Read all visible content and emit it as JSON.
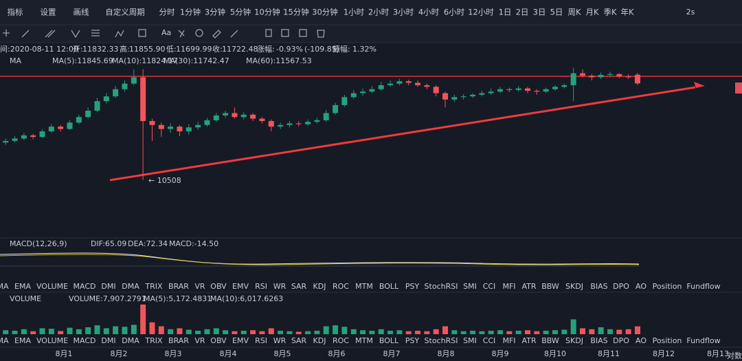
{
  "toolbar": {
    "items": [
      "指标",
      "设置",
      "画线",
      "自定义周期",
      "分时",
      "1分钟",
      "3分钟",
      "5分钟",
      "10分钟",
      "15分钟",
      "30分钟",
      "1小时",
      "2小时",
      "3小时",
      "4小时",
      "6小时",
      "12小时",
      "1日",
      "2日",
      "3日",
      "5日",
      "周K",
      "月K",
      "季K",
      "年K"
    ],
    "active": "4小时",
    "refresh": "2s",
    "font_button": "Aa"
  },
  "info_bar": [
    "间:2020-08-11 12:00",
    "开:",
    "11832.33",
    "高:",
    "11855.90",
    "低:",
    "11699.99",
    "收:",
    "11722.48",
    "涨幅:",
    "-0.93%",
    "(-109.85)",
    "振幅:",
    "1.32%"
  ],
  "ma_legend": {
    "name": "MA",
    "items": [
      "MA(5):11845.69",
      "MA(10):11824.17",
      "MA(30):11742.47",
      "MA(60):11567.53"
    ]
  },
  "low_marker": "← 10508",
  "macd_legend": {
    "name": "MACD(12,26,9)",
    "items": [
      "DIF:65.09",
      "DEA:72.34",
      "MACD:-14.50"
    ]
  },
  "volume_legend": {
    "name": "VOLUME",
    "items": [
      "VOLUME:7,907.2791",
      "MA(5):5,172.4831",
      "MA(10):6,017.6263"
    ]
  },
  "indicator_tabs": [
    "MA",
    "EMA",
    "VOLUME",
    "MACD",
    "DMI",
    "DMA",
    "TRIX",
    "BRAR",
    "VR",
    "OBV",
    "EMV",
    "RSI",
    "WR",
    "SAR",
    "KDJ",
    "ROC",
    "MTM",
    "BOLL",
    "PSY",
    "StochRSI",
    "SMI",
    "CCI",
    "MFI",
    "ATR",
    "BBW",
    "SKDJ",
    "BIAS",
    "DPO",
    "AO",
    "Position",
    "Fundflow"
  ],
  "active_tabs": [
    "MACD",
    "VOLUME"
  ],
  "dates": [
    "8月1",
    "8月2",
    "8月3",
    "8月4",
    "8月5",
    "8月6",
    "8月7",
    "8月8",
    "8月9",
    "8月10",
    "8月11",
    "8月12",
    "8月13"
  ],
  "scale_mode": "对数",
  "price_chart": {
    "type": "candlestick",
    "ylim": [
      9790,
      11950
    ],
    "up_color": "#26a17b",
    "down_color": "#f0555a",
    "candles": [
      [
        10980,
        11030,
        10950,
        11000
      ],
      [
        11000,
        11060,
        10980,
        11030
      ],
      [
        11030,
        11100,
        11010,
        11070
      ],
      [
        11070,
        11090,
        11020,
        11050
      ],
      [
        11050,
        11150,
        11040,
        11120
      ],
      [
        11120,
        11210,
        11100,
        11180
      ],
      [
        11180,
        11200,
        11120,
        11150
      ],
      [
        11150,
        11260,
        11140,
        11230
      ],
      [
        11230,
        11330,
        11210,
        11300
      ],
      [
        11300,
        11420,
        11280,
        11380
      ],
      [
        11380,
        11540,
        11360,
        11500
      ],
      [
        11500,
        11600,
        11470,
        11560
      ],
      [
        11560,
        11690,
        11540,
        11650
      ],
      [
        11650,
        11760,
        11620,
        11720
      ],
      [
        11720,
        11900,
        11700,
        11800
      ],
      [
        11800,
        11900,
        10508,
        11250
      ],
      [
        11250,
        11280,
        11000,
        11200
      ],
      [
        11200,
        11230,
        11050,
        11150
      ],
      [
        11150,
        11220,
        11100,
        11180
      ],
      [
        11180,
        11200,
        11060,
        11120
      ],
      [
        11120,
        11210,
        11080,
        11170
      ],
      [
        11170,
        11240,
        11140,
        11200
      ],
      [
        11200,
        11290,
        11180,
        11260
      ],
      [
        11260,
        11350,
        11240,
        11320
      ],
      [
        11320,
        11380,
        11290,
        11350
      ],
      [
        11350,
        11420,
        11280,
        11300
      ],
      [
        11300,
        11360,
        11270,
        11330
      ],
      [
        11330,
        11350,
        11250,
        11280
      ],
      [
        11280,
        11300,
        11220,
        11250
      ],
      [
        11250,
        11270,
        11120,
        11180
      ],
      [
        11180,
        11230,
        11150,
        11200
      ],
      [
        11200,
        11250,
        11170,
        11220
      ],
      [
        11220,
        11250,
        11180,
        11210
      ],
      [
        11210,
        11270,
        11190,
        11240
      ],
      [
        11240,
        11290,
        11220,
        11260
      ],
      [
        11260,
        11390,
        11240,
        11350
      ],
      [
        11350,
        11480,
        11330,
        11450
      ],
      [
        11450,
        11580,
        11430,
        11550
      ],
      [
        11550,
        11640,
        11530,
        11600
      ],
      [
        11600,
        11660,
        11570,
        11620
      ],
      [
        11620,
        11690,
        11600,
        11650
      ],
      [
        11650,
        11740,
        11630,
        11700
      ],
      [
        11700,
        11760,
        11680,
        11720
      ],
      [
        11720,
        11780,
        11700,
        11750
      ],
      [
        11750,
        11770,
        11700,
        11730
      ],
      [
        11730,
        11760,
        11680,
        11700
      ],
      [
        11700,
        11720,
        11650,
        11680
      ],
      [
        11680,
        11700,
        11560,
        11600
      ],
      [
        11600,
        11620,
        11420,
        11520
      ],
      [
        11520,
        11580,
        11490,
        11550
      ],
      [
        11550,
        11590,
        11520,
        11560
      ],
      [
        11560,
        11600,
        11540,
        11580
      ],
      [
        11580,
        11630,
        11560,
        11600
      ],
      [
        11600,
        11660,
        11580,
        11620
      ],
      [
        11620,
        11680,
        11600,
        11650
      ],
      [
        11650,
        11670,
        11610,
        11640
      ],
      [
        11640,
        11690,
        11620,
        11660
      ],
      [
        11660,
        11680,
        11600,
        11630
      ],
      [
        11630,
        11650,
        11580,
        11620
      ],
      [
        11620,
        11670,
        11600,
        11650
      ],
      [
        11650,
        11700,
        11630,
        11680
      ],
      [
        11680,
        11720,
        11660,
        11700
      ],
      [
        11700,
        11920,
        11500,
        11850
      ],
      [
        11850,
        11900,
        11800,
        11820
      ],
      [
        11820,
        11840,
        11760,
        11800
      ],
      [
        11800,
        11860,
        11780,
        11830
      ],
      [
        11830,
        11870,
        11800,
        11840
      ],
      [
        11840,
        11850,
        11790,
        11810
      ],
      [
        11810,
        11840,
        11780,
        11800
      ],
      [
        11832.33,
        11855.9,
        11699.99,
        11722.48
      ]
    ]
  },
  "volume_chart": {
    "type": "bar",
    "ylim": [
      0,
      32000
    ],
    "values": [
      4000,
      3500,
      5000,
      3000,
      6000,
      5500,
      3200,
      6500,
      5000,
      7000,
      9000,
      6000,
      8000,
      7500,
      9500,
      30000,
      12000,
      8000,
      5000,
      6000,
      4500,
      3500,
      5000,
      6000,
      4000,
      3000,
      3500,
      4000,
      3000,
      6000,
      3500,
      3000,
      2500,
      3000,
      3500,
      8000,
      9000,
      7500,
      5000,
      4000,
      3500,
      5000,
      3500,
      4000,
      3000,
      3500,
      3000,
      5000,
      8000,
      4000,
      3000,
      3500,
      3000,
      3500,
      4000,
      3000,
      3500,
      4000,
      3000,
      3500,
      4000,
      4500,
      15000,
      6000,
      5000,
      7000,
      5000,
      4500,
      5000,
      7907.2791
    ]
  }
}
